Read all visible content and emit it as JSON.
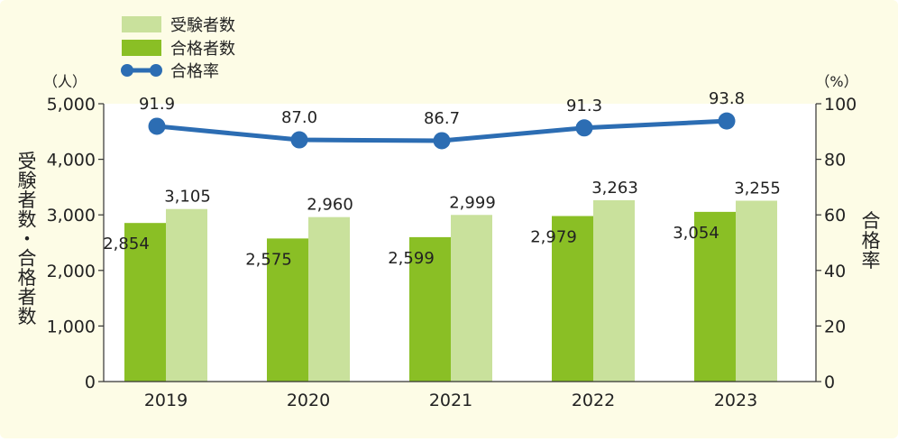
{
  "chart_data": {
    "type": "bar",
    "categories": [
      "2019",
      "2020",
      "2021",
      "2022",
      "2023"
    ],
    "series": [
      {
        "name": "受験者数",
        "type": "bar",
        "axis": "left",
        "color": "#c9e19c",
        "values": [
          3105,
          2960,
          2999,
          3263,
          3255
        ],
        "labels": [
          "3,105",
          "2,960",
          "2,999",
          "3,263",
          "3,255"
        ]
      },
      {
        "name": "合格者数",
        "type": "bar",
        "axis": "left",
        "color": "#8abf25",
        "values": [
          2854,
          2575,
          2599,
          2979,
          3054
        ],
        "labels": [
          "2,854",
          "2,575",
          "2,599",
          "2,979",
          "3,054"
        ]
      },
      {
        "name": "合格率",
        "type": "line",
        "axis": "right",
        "color": "#2c6db3",
        "values": [
          91.9,
          87.0,
          86.7,
          91.3,
          93.8
        ],
        "labels": [
          "91.9",
          "87.0",
          "86.7",
          "91.3",
          "93.8"
        ]
      }
    ],
    "left_axis": {
      "title": "受験者数・合格者数",
      "unit": "（人）",
      "range": [
        0,
        5000
      ],
      "ticks": [
        "0",
        "1,000",
        "2,000",
        "3,000",
        "4,000",
        "5,000"
      ]
    },
    "right_axis": {
      "title": "合格率",
      "unit": "（%）",
      "range": [
        0,
        100
      ],
      "ticks": [
        "0",
        "20",
        "40",
        "60",
        "80",
        "100"
      ]
    },
    "legend_position": "top-left",
    "colors": {
      "outer_background": "#fdfce6",
      "plot_background": "#ffffff"
    }
  }
}
